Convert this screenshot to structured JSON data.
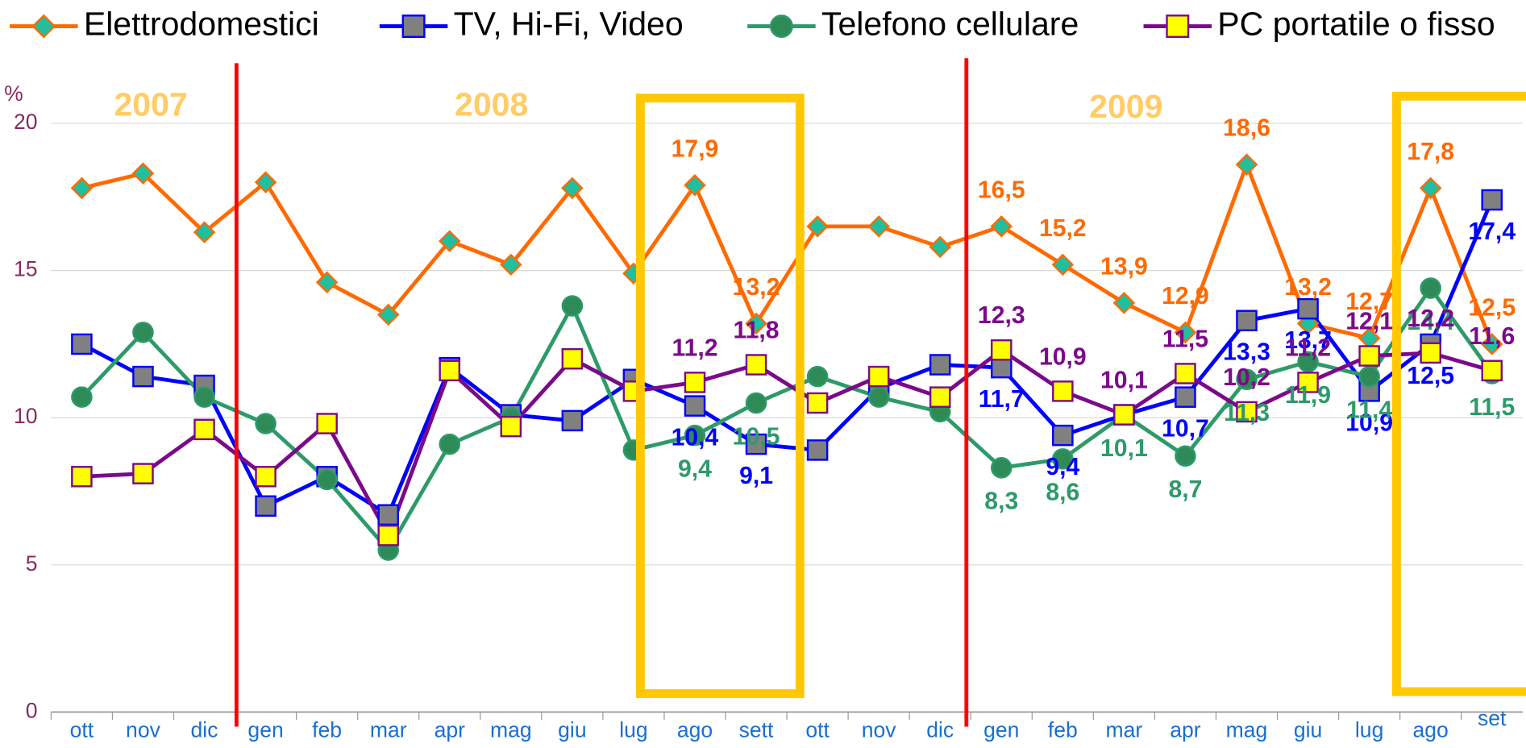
{
  "chart_data": {
    "type": "line",
    "y_label": "%",
    "annotations": [
      "2007",
      "2008",
      "2009"
    ],
    "categories": [
      "ott",
      "nov",
      "dic",
      "gen",
      "feb",
      "mar",
      "apr",
      "mag",
      "giu",
      "lug",
      "ago",
      "sett",
      "ott",
      "nov",
      "dic",
      "gen",
      "feb",
      "mar",
      "apr",
      "mag",
      "giu",
      "lug",
      "ago",
      "set"
    ],
    "ylim": [
      0,
      20
    ],
    "yticks": [
      0,
      5,
      10,
      15,
      20
    ],
    "grid": true,
    "series": [
      {
        "name": "Elettrodomestici",
        "color": "#ff6a00",
        "marker": "diamond",
        "marker_color": "#1fbf9f",
        "values": [
          17.8,
          18.3,
          16.3,
          18.0,
          14.6,
          13.5,
          16.0,
          15.2,
          17.8,
          14.9,
          17.9,
          13.2,
          16.5,
          16.5,
          15.8,
          16.5,
          15.2,
          13.9,
          12.9,
          18.6,
          13.2,
          12.7,
          17.8,
          12.5
        ],
        "value_labels": [
          null,
          null,
          null,
          null,
          null,
          null,
          null,
          null,
          null,
          null,
          "17,9",
          "13,2",
          null,
          null,
          null,
          "16,5",
          "15,2",
          "13,9",
          "12,9",
          "18,6",
          "13,2",
          "12,7",
          "17,8",
          "12,5"
        ]
      },
      {
        "name": "TV, Hi-Fi, Video",
        "color": "#0000ff",
        "marker": "square",
        "marker_color": "#808080",
        "values": [
          12.5,
          11.4,
          11.1,
          7.0,
          8.0,
          6.7,
          11.7,
          10.1,
          9.9,
          11.3,
          10.4,
          9.1,
          8.9,
          11.0,
          11.8,
          11.7,
          9.4,
          10.1,
          10.7,
          13.3,
          13.7,
          10.9,
          12.5,
          17.4
        ],
        "value_labels": [
          null,
          null,
          null,
          null,
          null,
          null,
          null,
          null,
          null,
          null,
          "10,4",
          "9,1",
          null,
          null,
          null,
          "11,7",
          "9,4",
          null,
          "10,7",
          "13,3",
          "13,7",
          "10,9",
          "12,5",
          "17,4"
        ]
      },
      {
        "name": "Telefono cellulare",
        "color": "#2e9a6a",
        "marker": "circle",
        "marker_color": "#2e8b57",
        "values": [
          10.7,
          12.9,
          10.7,
          9.8,
          7.9,
          5.5,
          9.1,
          10.0,
          13.8,
          8.9,
          9.4,
          10.5,
          11.4,
          10.7,
          10.2,
          8.3,
          8.6,
          10.1,
          8.7,
          11.3,
          11.9,
          11.4,
          14.4,
          11.5
        ],
        "value_labels": [
          null,
          null,
          null,
          null,
          null,
          null,
          null,
          null,
          null,
          null,
          "9,4",
          "10,5",
          null,
          null,
          null,
          "8,3",
          "8,6",
          "10,1",
          "8,7",
          "11,3",
          "11,9",
          "11,4",
          "14,4",
          "11,5"
        ]
      },
      {
        "name": "PC portatile o fisso",
        "color": "#7b0a8a",
        "marker": "square",
        "marker_color": "#ffff00",
        "values": [
          8.0,
          8.1,
          9.6,
          8.0,
          9.8,
          6.0,
          11.6,
          9.7,
          12.0,
          10.9,
          11.2,
          11.8,
          10.5,
          11.4,
          10.7,
          12.3,
          10.9,
          10.1,
          11.5,
          10.2,
          11.2,
          12.1,
          12.2,
          11.6
        ],
        "value_labels": [
          null,
          null,
          null,
          null,
          null,
          null,
          null,
          null,
          null,
          null,
          "11,2",
          "11,8",
          null,
          null,
          null,
          "12,3",
          "10,9",
          "10,1",
          "11,5",
          "10,2",
          "11,2",
          "12,1",
          "12,2",
          "11,6"
        ]
      }
    ]
  }
}
